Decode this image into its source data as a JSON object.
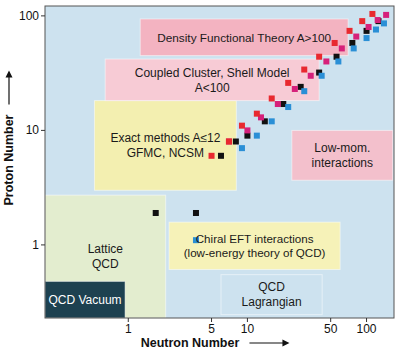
{
  "chart_data": {
    "type": "scatter",
    "log": true,
    "color": "#cde2ef",
    "xlabel": "Neutron Number",
    "ylabel": "Proton Number",
    "xlim": [
      0.2,
      170
    ],
    "ylim": [
      0.23,
      122
    ],
    "xticks": [
      1,
      5,
      10,
      50,
      100
    ],
    "yticks": [
      1,
      10,
      100
    ],
    "marker": "square",
    "regions": [
      {
        "label": [
          "Lattice",
          "QCD"
        ],
        "color": "#e3edcf",
        "x": [
          0.2,
          2.06
        ],
        "y": [
          0.23,
          2.72
        ]
      },
      {
        "label": [
          "QCD Vacuum"
        ],
        "color": "#1d4150",
        "x": [
          0.2,
          0.94
        ],
        "y": [
          0.23,
          0.48
        ]
      },
      {
        "label": [
          "QCD",
          "Lagrangian"
        ],
        "color": "#cde2ef",
        "x": [
          6.0,
          42.4
        ],
        "y": [
          0.246,
          0.55
        ]
      },
      {
        "label": [
          "Chiral EFT interactions",
          "(low-energy theory of QCD)"
        ],
        "color": "#f6f2b8",
        "x": [
          2.2,
          60
        ],
        "y": [
          0.61,
          1.58
        ]
      },
      {
        "label": [
          "Exact methods A≤12",
          "GFMC, NCSM"
        ],
        "color": "#f3efb0",
        "x": [
          0.52,
          8.07
        ],
        "y": [
          3.0,
          18.2
        ]
      },
      {
        "label": [
          "Coupled Cluster, Shell Model",
          "A<100"
        ],
        "color": "#f7cbd5",
        "x": [
          0.64,
          40
        ],
        "y": [
          18.2,
          42
        ]
      },
      {
        "label": [
          "Density Functional Theory A>100"
        ],
        "color": "#f3b3c1",
        "x": [
          1.26,
          70
        ],
        "y": [
          45,
          94
        ]
      },
      {
        "label": [
          "Low-mom.",
          "interactions"
        ],
        "color": "#f3c0cc",
        "x": [
          23.6,
          166
        ],
        "y": [
          3.67,
          10
        ]
      }
    ],
    "series": [
      {
        "color": "#111111",
        "x": [
          1.7,
          3.7,
          6,
          8,
          10,
          14,
          20,
          28,
          40,
          56,
          76,
          100,
          126
        ],
        "y": [
          1.9,
          1.9,
          6,
          8,
          9,
          12,
          17,
          24,
          32,
          44,
          58,
          74,
          90
        ]
      },
      {
        "color": "#2a8fd6",
        "x": [
          3.7,
          9,
          12,
          16,
          22,
          30,
          42,
          58,
          78,
          100,
          120,
          140
        ],
        "y": [
          1.1,
          7,
          9,
          12,
          16,
          22,
          30,
          40,
          52,
          64,
          76,
          86
        ]
      },
      {
        "color": "#d6207a",
        "x": [
          7,
          10,
          13,
          18,
          25,
          34,
          46,
          62,
          82,
          104,
          124,
          146
        ],
        "y": [
          8,
          10,
          13,
          17,
          23,
          30,
          40,
          52,
          66,
          80,
          92,
          102
        ]
      },
      {
        "color": "#e8292f",
        "x": [
          5,
          7,
          9,
          12,
          16,
          22,
          30,
          40,
          54,
          72,
          92,
          112
        ],
        "y": [
          6,
          8,
          11,
          14,
          19,
          26,
          34,
          44,
          58,
          74,
          90,
          104
        ]
      }
    ]
  }
}
